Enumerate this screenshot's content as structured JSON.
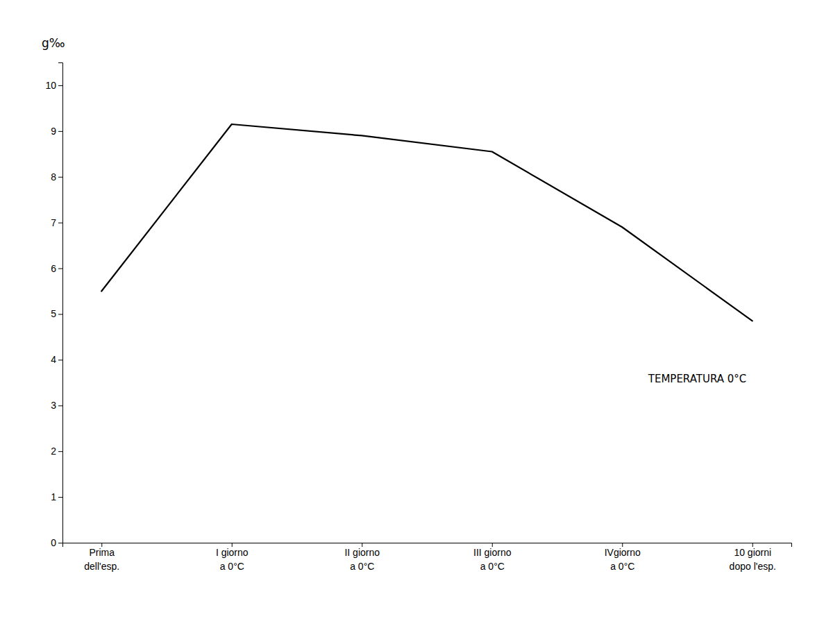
{
  "chart_data": {
    "type": "line",
    "y_label": "g‰",
    "annotation": "TEMPERATURA  0°C",
    "categories": [
      "Prima\ndell'esp.",
      "I giorno\na 0°C",
      "II giorno\na 0°C",
      "III giorno\na 0°C",
      "IVgiorno\na 0°C",
      "10 giorni\ndopo l'esp."
    ],
    "values": [
      5.5,
      9.15,
      8.9,
      8.55,
      6.9,
      4.85
    ],
    "color": "#000000",
    "ylim": [
      0,
      10.5
    ],
    "yticks": [
      0,
      1,
      2,
      3,
      4,
      5,
      6,
      7,
      8,
      9,
      10
    ],
    "grid": false
  }
}
